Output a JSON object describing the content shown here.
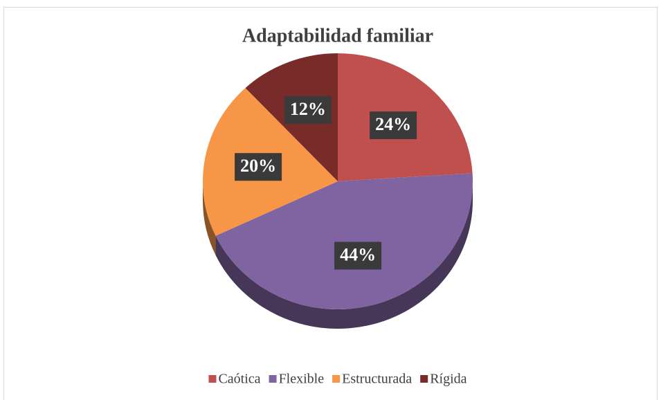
{
  "chart_data": {
    "type": "pie",
    "title": "Adaptabilidad familiar",
    "categories": [
      "Caótica",
      "Flexible",
      "Estructurada",
      "Rígida"
    ],
    "values": [
      24,
      44,
      20,
      12
    ],
    "value_labels": [
      "24%",
      "44%",
      "20%",
      "12%"
    ],
    "colors": [
      "#c0504d",
      "#8064a2",
      "#f79646",
      "#772c2a"
    ],
    "legend": "bottom"
  }
}
